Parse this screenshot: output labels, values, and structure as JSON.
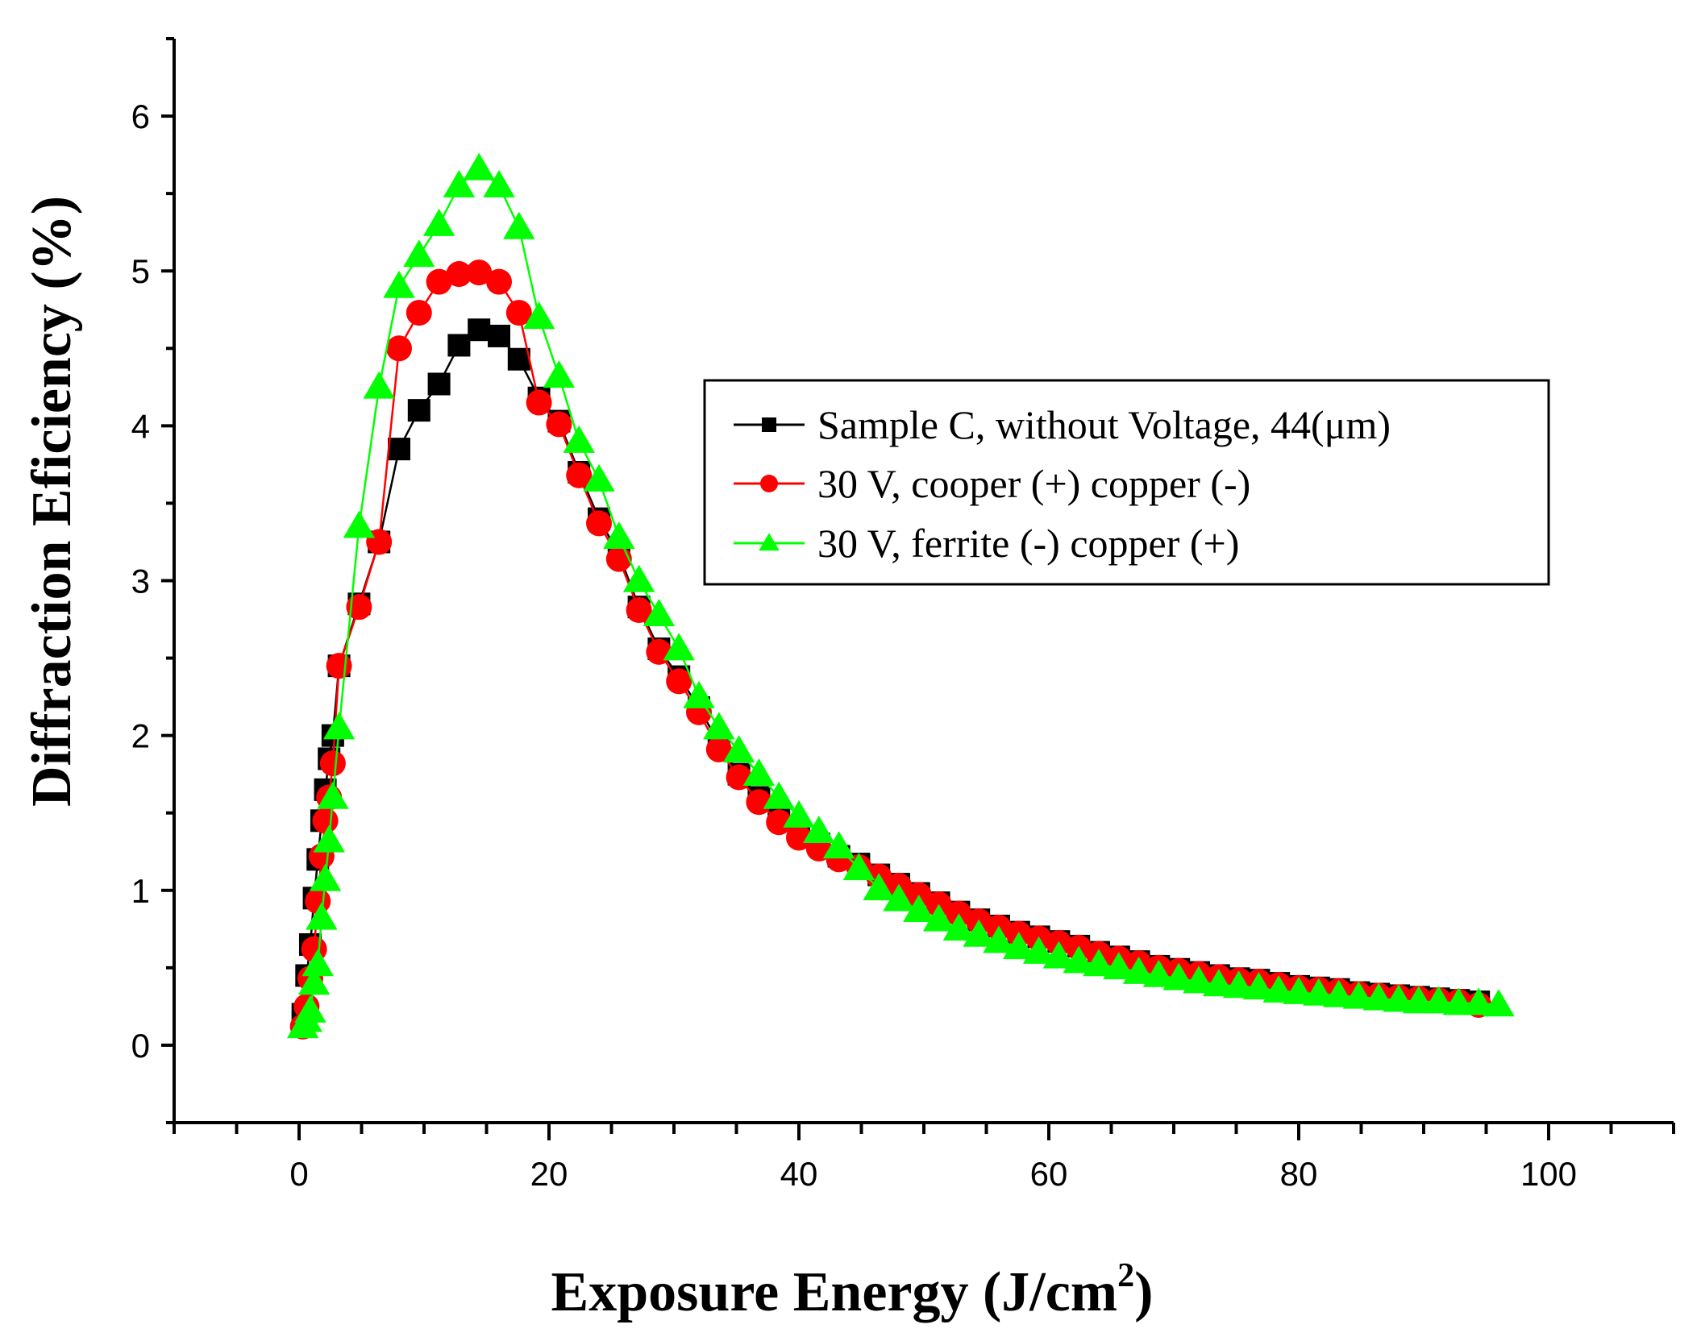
{
  "chart_data": {
    "type": "scatter",
    "title": "",
    "xlabel": "Exposure Energy (J/cm",
    "xlabel_sup": "2",
    "xlabel_suffix": ")",
    "ylabel": "Diffraction Eficiency (%)",
    "xlim": [
      -10,
      110
    ],
    "ylim": [
      -0.5,
      6.5
    ],
    "x_ticks": [
      0,
      20,
      40,
      60,
      80,
      100
    ],
    "y_ticks": [
      0,
      1,
      2,
      3,
      4,
      5,
      6
    ],
    "x_tick_labels": [
      "0",
      "20",
      "40",
      "60",
      "80",
      "100"
    ],
    "y_tick_labels": [
      "0",
      "1",
      "2",
      "3",
      "4",
      "5",
      "6"
    ],
    "x_minor_step": 5,
    "y_minor_step": 0.5,
    "grid": false,
    "legend_position": "center-right",
    "series": [
      {
        "name": "Sample C, without Voltage, 44(μm)",
        "color": "#000000",
        "marker": "square",
        "x": [
          0.3,
          0.6,
          0.9,
          1.2,
          1.5,
          1.8,
          2.1,
          2.4,
          2.7,
          3.2,
          4.8,
          6.4,
          8.0,
          9.6,
          11.2,
          12.8,
          14.4,
          16.0,
          17.6,
          19.2,
          20.8,
          22.4,
          24.0,
          25.6,
          27.2,
          28.8,
          30.4,
          32.0,
          33.6,
          35.2,
          36.8,
          38.4,
          40.0,
          41.6,
          43.2,
          44.8,
          46.4,
          48.0,
          49.6,
          51.2,
          52.8,
          54.4,
          56.0,
          57.6,
          59.2,
          60.8,
          62.4,
          64.0,
          65.6,
          67.2,
          68.8,
          70.4,
          72.0,
          73.6,
          75.2,
          76.8,
          78.4,
          80.0,
          81.6,
          83.2,
          84.8,
          86.4,
          88.0,
          89.6,
          91.2,
          92.8,
          94.4
        ],
        "y": [
          0.2,
          0.45,
          0.65,
          0.95,
          1.2,
          1.45,
          1.65,
          1.85,
          2.0,
          2.45,
          2.85,
          3.25,
          3.85,
          4.1,
          4.27,
          4.52,
          4.62,
          4.58,
          4.43,
          4.18,
          4.03,
          3.7,
          3.4,
          3.17,
          2.83,
          2.56,
          2.38,
          2.18,
          1.95,
          1.75,
          1.6,
          1.47,
          1.37,
          1.3,
          1.22,
          1.17,
          1.1,
          1.04,
          0.98,
          0.92,
          0.86,
          0.81,
          0.77,
          0.73,
          0.7,
          0.67,
          0.64,
          0.6,
          0.57,
          0.54,
          0.51,
          0.49,
          0.47,
          0.45,
          0.43,
          0.42,
          0.4,
          0.38,
          0.37,
          0.36,
          0.34,
          0.33,
          0.32,
          0.31,
          0.3,
          0.29,
          0.28
        ]
      },
      {
        "name": "30 V, cooper (+) copper (-)",
        "color": "#ff0000",
        "marker": "circle",
        "x": [
          0.3,
          0.6,
          0.9,
          1.2,
          1.5,
          1.8,
          2.1,
          2.4,
          2.7,
          3.2,
          4.8,
          6.4,
          8.0,
          9.6,
          11.2,
          12.8,
          14.4,
          16.0,
          17.6,
          19.2,
          20.8,
          22.4,
          24.0,
          25.6,
          27.2,
          28.8,
          30.4,
          32.0,
          33.6,
          35.2,
          36.8,
          38.4,
          40.0,
          41.6,
          43.2,
          44.8,
          46.4,
          48.0,
          49.6,
          51.2,
          52.8,
          54.4,
          56.0,
          57.6,
          59.2,
          60.8,
          62.4,
          64.0,
          65.6,
          67.2,
          68.8,
          70.4,
          72.0,
          73.6,
          75.2,
          76.8,
          78.4,
          80.0,
          81.6,
          83.2,
          84.8,
          86.4,
          88.0,
          89.6,
          91.2,
          92.8,
          94.4
        ],
        "y": [
          0.12,
          0.25,
          0.43,
          0.62,
          0.93,
          1.22,
          1.45,
          1.6,
          1.82,
          2.45,
          2.83,
          3.25,
          4.5,
          4.73,
          4.93,
          4.98,
          4.99,
          4.93,
          4.73,
          4.15,
          4.01,
          3.68,
          3.37,
          3.14,
          2.81,
          2.54,
          2.35,
          2.15,
          1.91,
          1.73,
          1.57,
          1.44,
          1.34,
          1.27,
          1.2,
          1.15,
          1.09,
          1.03,
          0.97,
          0.91,
          0.85,
          0.8,
          0.76,
          0.72,
          0.69,
          0.66,
          0.63,
          0.59,
          0.56,
          0.53,
          0.5,
          0.48,
          0.46,
          0.44,
          0.42,
          0.41,
          0.39,
          0.37,
          0.36,
          0.35,
          0.33,
          0.32,
          0.31,
          0.3,
          0.29,
          0.28,
          0.26
        ]
      },
      {
        "name": "30 V, ferrite (-) copper (+)",
        "color": "#00ff00",
        "marker": "triangle",
        "x": [
          0.3,
          0.6,
          0.9,
          1.2,
          1.5,
          1.8,
          2.1,
          2.4,
          2.7,
          3.2,
          4.8,
          6.4,
          8.0,
          9.6,
          11.2,
          12.8,
          14.4,
          16.0,
          17.6,
          19.2,
          20.8,
          22.4,
          24.0,
          25.6,
          27.2,
          28.8,
          30.4,
          32.0,
          33.6,
          35.2,
          36.8,
          38.4,
          40.0,
          41.6,
          43.2,
          44.8,
          46.4,
          48.0,
          49.6,
          51.2,
          52.8,
          54.4,
          56.0,
          57.6,
          59.2,
          60.8,
          62.4,
          64.0,
          65.6,
          67.2,
          68.8,
          70.4,
          72.0,
          73.6,
          75.2,
          76.8,
          78.4,
          80.0,
          81.6,
          83.2,
          84.8,
          86.4,
          88.0,
          89.6,
          91.2,
          92.8,
          94.4,
          96.0
        ],
        "y": [
          0.12,
          0.16,
          0.22,
          0.4,
          0.52,
          0.82,
          1.07,
          1.32,
          1.6,
          2.05,
          3.35,
          4.25,
          4.9,
          5.1,
          5.3,
          5.55,
          5.66,
          5.55,
          5.28,
          4.7,
          4.32,
          3.9,
          3.65,
          3.28,
          3.0,
          2.78,
          2.56,
          2.25,
          2.05,
          1.9,
          1.75,
          1.6,
          1.48,
          1.38,
          1.28,
          1.14,
          1.01,
          0.94,
          0.87,
          0.81,
          0.75,
          0.71,
          0.67,
          0.63,
          0.6,
          0.57,
          0.54,
          0.52,
          0.5,
          0.47,
          0.45,
          0.43,
          0.41,
          0.39,
          0.38,
          0.37,
          0.35,
          0.34,
          0.33,
          0.32,
          0.31,
          0.3,
          0.29,
          0.28,
          0.28,
          0.27,
          0.27,
          0.26
        ]
      }
    ]
  }
}
